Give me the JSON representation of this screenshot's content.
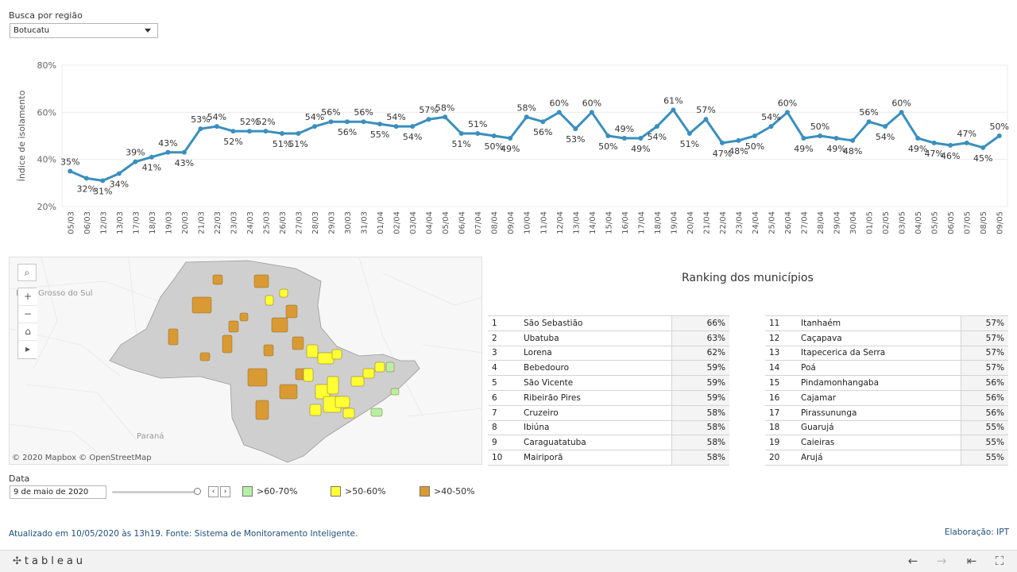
{
  "filter": {
    "label": "Busca por região",
    "value": "Botucatu"
  },
  "chart_data": {
    "type": "line",
    "ylabel": "Índice de isolamento",
    "yticks": [
      "80%",
      "60%",
      "40%",
      "20%"
    ],
    "ylim": [
      0.2,
      0.8
    ],
    "x": [
      "05/03",
      "06/03",
      "12/03",
      "13/03",
      "17/03",
      "18/03",
      "19/03",
      "20/03",
      "21/03",
      "22/03",
      "23/03",
      "24/03",
      "25/03",
      "26/03",
      "27/03",
      "28/03",
      "29/03",
      "30/03",
      "31/03",
      "01/04",
      "02/04",
      "03/04",
      "04/04",
      "05/04",
      "06/04",
      "07/04",
      "08/04",
      "09/04",
      "10/04",
      "11/04",
      "12/04",
      "13/04",
      "14/04",
      "15/04",
      "16/04",
      "17/04",
      "18/04",
      "19/04",
      "20/04",
      "21/04",
      "22/04",
      "23/04",
      "24/04",
      "25/04",
      "26/04",
      "27/04",
      "28/04",
      "29/04",
      "30/04",
      "01/05",
      "02/05",
      "03/05",
      "04/05",
      "05/05",
      "06/05",
      "07/05",
      "08/05",
      "09/05"
    ],
    "values": [
      0.35,
      0.32,
      0.31,
      0.34,
      0.39,
      0.41,
      0.43,
      0.43,
      0.53,
      0.54,
      0.52,
      0.52,
      0.52,
      0.51,
      0.51,
      0.54,
      0.56,
      0.56,
      0.56,
      0.55,
      0.54,
      0.54,
      0.57,
      0.58,
      0.51,
      0.51,
      0.5,
      0.49,
      0.58,
      0.56,
      0.6,
      0.53,
      0.6,
      0.5,
      0.49,
      0.49,
      0.54,
      0.61,
      0.51,
      0.57,
      0.47,
      0.48,
      0.5,
      0.54,
      0.6,
      0.49,
      0.5,
      0.49,
      0.48,
      0.56,
      0.54,
      0.6,
      0.49,
      0.47,
      0.46,
      0.47,
      0.45,
      0.5
    ],
    "data_labels": [
      "35%",
      "32%",
      "31%",
      "34%",
      "39%",
      "41%",
      "43%",
      "43%",
      "53%",
      "54%",
      "52%",
      "52%",
      "52%",
      "51%",
      "51%",
      "54%",
      "56%",
      "56%",
      "56%",
      "55%",
      "54%",
      "54%",
      "57%",
      "58%",
      "51%",
      "51%",
      "50%",
      "49%",
      "58%",
      "56%",
      "60%",
      "53%",
      "60%",
      "50%",
      "49%",
      "49%",
      "54%",
      "61%",
      "51%",
      "57%",
      "47%",
      "48%",
      "50%",
      "54%",
      "60%",
      "49%",
      "50%",
      "49%",
      "48%",
      "56%",
      "54%",
      "60%",
      "49%",
      "47%",
      "46%",
      "47%",
      "45%",
      "50%"
    ],
    "label_pos": [
      "a",
      "b",
      "b",
      "b",
      "a",
      "b",
      "a",
      "b",
      "a",
      "a",
      "b",
      "a",
      "a",
      "b",
      "b",
      "a",
      "a",
      "b",
      "a",
      "b",
      "a",
      "b",
      "a",
      "a",
      "b",
      "a",
      "b",
      "b",
      "a",
      "b",
      "a",
      "b",
      "a",
      "b",
      "a",
      "b",
      "b",
      "a",
      "b",
      "a",
      "b",
      "b",
      "b",
      "a",
      "a",
      "b",
      "a",
      "b",
      "b",
      "a",
      "b",
      "a",
      "b",
      "b",
      "b",
      "a",
      "b",
      "a"
    ],
    "color": "#3a8fbd"
  },
  "map": {
    "attribution": "© 2020 Mapbox © OpenStreetMap",
    "region_labels": [
      "Mato Grosso do Sul",
      "Paraná"
    ],
    "colors": {
      "state": "#cfcfcf",
      "band_60_70": "#b7f0a4",
      "band_50_60": "#ffff33",
      "band_40_50": "#d99a33"
    }
  },
  "ranking": {
    "title": "Ranking dos municípios",
    "left": [
      {
        "n": "1",
        "name": "São Sebastião",
        "val": "66%"
      },
      {
        "n": "2",
        "name": "Ubatuba",
        "val": "63%"
      },
      {
        "n": "3",
        "name": "Lorena",
        "val": "62%"
      },
      {
        "n": "4",
        "name": "Bebedouro",
        "val": "59%"
      },
      {
        "n": "5",
        "name": "São Vicente",
        "val": "59%"
      },
      {
        "n": "6",
        "name": "Ribeirão Pires",
        "val": "59%"
      },
      {
        "n": "7",
        "name": "Cruzeiro",
        "val": "58%"
      },
      {
        "n": "8",
        "name": "Ibiúna",
        "val": "58%"
      },
      {
        "n": "9",
        "name": "Caraguatatuba",
        "val": "58%"
      },
      {
        "n": "10",
        "name": "Mairiporã",
        "val": "58%"
      }
    ],
    "right": [
      {
        "n": "11",
        "name": "Itanhaém",
        "val": "57%"
      },
      {
        "n": "12",
        "name": "Caçapava",
        "val": "57%"
      },
      {
        "n": "13",
        "name": "Itapecerica da Serra",
        "val": "57%"
      },
      {
        "n": "14",
        "name": "Poá",
        "val": "57%"
      },
      {
        "n": "15",
        "name": "Pindamonhangaba",
        "val": "56%"
      },
      {
        "n": "16",
        "name": "Cajamar",
        "val": "56%"
      },
      {
        "n": "17",
        "name": "Pirassununga",
        "val": "56%"
      },
      {
        "n": "18",
        "name": "Guarujá",
        "val": "55%"
      },
      {
        "n": "19",
        "name": "Caieiras",
        "val": "55%"
      },
      {
        "n": "20",
        "name": "Arujá",
        "val": "55%"
      }
    ]
  },
  "date_filter": {
    "label": "Data",
    "value": "9 de maio de 2020",
    "slider_fraction": 1.0
  },
  "legend": [
    {
      "label": ">60-70%",
      "color": "#b7f0a4"
    },
    {
      "label": ">50-60%",
      "color": "#ffff33"
    },
    {
      "label": ">40-50%",
      "color": "#d99a33"
    }
  ],
  "footer": {
    "note": "Atualizado em 10/05/2020 às 13h19. Fonte: Sistema de Monitoramento Inteligente.",
    "credit": "Elaboração: IPT"
  },
  "toolbar": {
    "brand": "tableau",
    "icons": [
      "undo-icon",
      "redo-icon",
      "revert-icon",
      "fullscreen-icon"
    ]
  }
}
